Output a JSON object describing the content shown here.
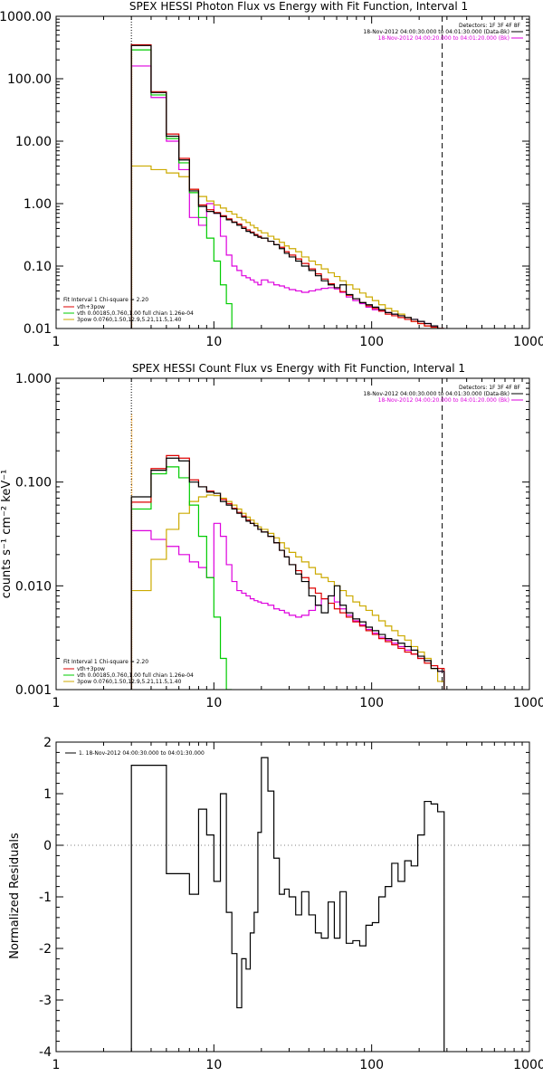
{
  "chart_data": [
    {
      "type": "line",
      "title": "SPEX HESSI Photon Flux vs Energy with Fit Function, Interval 1",
      "xlabel": "",
      "ylabel": "",
      "xscale": "log",
      "yscale": "log",
      "xlim": [
        1,
        1000
      ],
      "ylim": [
        0.01,
        1000
      ],
      "xtick_labels": [
        "1",
        "10",
        "100",
        "1000"
      ],
      "ytick_labels": [
        "0.01",
        "0.10",
        "1.00",
        "10.00",
        "100.00",
        "1000.00"
      ],
      "detectors_text": "Detectors: 1F 3F 4F 8F",
      "time_lines": [
        {
          "text": "18-Nov-2012 04:00:30.000 to 04:01:30.000 (Data-Bk)",
          "color": "#000000"
        },
        {
          "text": "18-Nov-2012 04:00:20.000 to 04:01:20.000 (Bk)",
          "color": "#dd00dd"
        }
      ],
      "fit_legend": [
        {
          "text": "Fit Interval 1    Chi-square = 2.20",
          "color": "#000000"
        },
        {
          "text": "vth+3pow",
          "color": "#dd0000"
        },
        {
          "text": "vth 0.00185,0.760,1.00   full chian 1.26e-04",
          "color": "#00cc00"
        },
        {
          "text": "3pow 0.0760,1.50,12.9,5.21,11.5,1.40",
          "color": "#ccaa00"
        }
      ],
      "vlines": [
        {
          "x": 3,
          "style": "dotted"
        },
        {
          "x": 280,
          "style": "dashed"
        }
      ],
      "edges": [
        3,
        4,
        5,
        6,
        7,
        8,
        9,
        10,
        11,
        12,
        13,
        14,
        15,
        16,
        17,
        18,
        19,
        20,
        22,
        24,
        26,
        28,
        30,
        33,
        36,
        40,
        44,
        48,
        53,
        58,
        63,
        69,
        76,
        84,
        92,
        101,
        111,
        122,
        134,
        147,
        162,
        178,
        196,
        216,
        238,
        262,
        288
      ],
      "series": [
        {
          "name": "Data-Bk",
          "color": "#000000",
          "values": [
            340,
            60,
            12,
            5,
            1.6,
            0.9,
            0.75,
            0.7,
            0.62,
            0.55,
            0.5,
            0.45,
            0.4,
            0.36,
            0.34,
            0.31,
            0.29,
            0.28,
            0.25,
            0.22,
            0.19,
            0.16,
            0.14,
            0.12,
            0.1,
            0.085,
            0.07,
            0.058,
            0.05,
            0.045,
            0.05,
            0.035,
            0.03,
            0.026,
            0.024,
            0.022,
            0.02,
            0.018,
            0.017,
            0.016,
            0.015,
            0.014,
            0.013,
            0.012,
            0.011,
            0.01
          ]
        },
        {
          "name": "vth+3pow",
          "color": "#dd0000",
          "values": [
            350,
            62,
            13,
            5.3,
            1.7,
            0.95,
            0.8,
            0.72,
            0.64,
            0.57,
            0.51,
            0.47,
            0.42,
            0.38,
            0.35,
            0.32,
            0.3,
            0.28,
            0.25,
            0.22,
            0.2,
            0.17,
            0.15,
            0.13,
            0.11,
            0.09,
            0.075,
            0.062,
            0.052,
            0.045,
            0.039,
            0.034,
            0.03,
            0.026,
            0.023,
            0.021,
            0.019,
            0.017,
            0.016,
            0.015,
            0.014,
            0.013,
            0.012,
            0.011,
            0.0105,
            0.01
          ]
        },
        {
          "name": "vth",
          "color": "#00cc00",
          "values": [
            290,
            55,
            11,
            4.5,
            1.5,
            0.6,
            0.28,
            0.12,
            0.05,
            0.025
          ]
        },
        {
          "name": "3pow",
          "color": "#ccaa00",
          "values": [
            4,
            3.5,
            3.1,
            2.7,
            1.7,
            1.3,
            1.1,
            0.95,
            0.85,
            0.75,
            0.68,
            0.6,
            0.55,
            0.5,
            0.45,
            0.41,
            0.37,
            0.34,
            0.3,
            0.27,
            0.24,
            0.21,
            0.19,
            0.17,
            0.14,
            0.12,
            0.105,
            0.09,
            0.078,
            0.068,
            0.058,
            0.05,
            0.043,
            0.037,
            0.032,
            0.028,
            0.024,
            0.021,
            0.019,
            0.017,
            0.015,
            0.013,
            0.012,
            0.011,
            0.0105,
            0.01
          ]
        },
        {
          "name": "Bk",
          "color": "#dd00dd",
          "values": [
            160,
            50,
            10,
            3.5,
            0.6,
            0.45,
            1.0,
            0.7,
            0.3,
            0.15,
            0.1,
            0.085,
            0.07,
            0.065,
            0.06,
            0.055,
            0.05,
            0.06,
            0.055,
            0.05,
            0.048,
            0.045,
            0.042,
            0.04,
            0.038,
            0.04,
            0.042,
            0.044,
            0.045,
            0.043,
            0.038,
            0.032,
            0.028,
            0.025,
            0.022,
            0.02,
            0.019,
            0.018,
            0.017,
            0.016,
            0.015,
            0.014,
            0.013,
            0.012,
            0.011,
            0.01
          ]
        }
      ]
    },
    {
      "type": "line",
      "title": "SPEX HESSI Count Flux vs Energy with Fit Function, Interval 1",
      "xlabel": "",
      "ylabel": "counts s⁻¹ cm⁻² keV⁻¹",
      "xscale": "log",
      "yscale": "log",
      "xlim": [
        1,
        1000
      ],
      "ylim": [
        0.001,
        1
      ],
      "xtick_labels": [
        "1",
        "10",
        "100",
        "1000"
      ],
      "ytick_labels": [
        "0.001",
        "0.010",
        "0.100",
        "1.000"
      ],
      "detectors_text": "Detectors: 1F 3F 4F 8F",
      "time_lines": [
        {
          "text": "18-Nov-2012 04:00:30.000 to 04:01:30.000 (Data-Bk)",
          "color": "#000000"
        },
        {
          "text": "18-Nov-2012 04:00:20.000 to 04:01:20.000 (Bk)",
          "color": "#dd00dd"
        }
      ],
      "fit_legend": [
        {
          "text": "Fit Interval 1    Chi-square = 2.20",
          "color": "#000000"
        },
        {
          "text": "vth+3pow",
          "color": "#dd0000"
        },
        {
          "text": "vth 0.00185,0.760,1.00   full chian 1.26e-04",
          "color": "#00cc00"
        },
        {
          "text": "3pow 0.0760,1.50,12.9,5.21,11.5,1.40",
          "color": "#ccaa00"
        }
      ],
      "vlines": [
        {
          "x": 3,
          "style": "dotted"
        },
        {
          "x": 280,
          "style": "dashed"
        }
      ],
      "edges": [
        3,
        4,
        5,
        6,
        7,
        8,
        9,
        10,
        11,
        12,
        13,
        14,
        15,
        16,
        17,
        18,
        19,
        20,
        22,
        24,
        26,
        28,
        30,
        33,
        36,
        40,
        44,
        48,
        53,
        58,
        63,
        69,
        76,
        84,
        92,
        101,
        111,
        122,
        134,
        147,
        162,
        178,
        196,
        216,
        238,
        262,
        288
      ],
      "series": [
        {
          "name": "Data-Bk",
          "color": "#000000",
          "values": [
            0.072,
            0.13,
            0.17,
            0.16,
            0.1,
            0.09,
            0.08,
            0.078,
            0.065,
            0.06,
            0.055,
            0.05,
            0.046,
            0.042,
            0.04,
            0.038,
            0.035,
            0.033,
            0.03,
            0.026,
            0.022,
            0.019,
            0.016,
            0.013,
            0.011,
            0.008,
            0.0065,
            0.0055,
            0.008,
            0.01,
            0.0065,
            0.0055,
            0.0048,
            0.0045,
            0.004,
            0.0037,
            0.0034,
            0.0031,
            0.003,
            0.0028,
            0.0026,
            0.0024,
            0.0021,
            0.0019,
            0.0016,
            0.0015
          ]
        },
        {
          "name": "vth+3pow",
          "color": "#dd0000",
          "values": [
            0.064,
            0.135,
            0.18,
            0.17,
            0.105,
            0.09,
            0.082,
            0.078,
            0.068,
            0.062,
            0.056,
            0.051,
            0.047,
            0.043,
            0.04,
            0.038,
            0.035,
            0.033,
            0.03,
            0.026,
            0.022,
            0.019,
            0.016,
            0.014,
            0.012,
            0.0095,
            0.0085,
            0.0075,
            0.0068,
            0.006,
            0.0055,
            0.005,
            0.0045,
            0.0041,
            0.0037,
            0.0034,
            0.0031,
            0.0029,
            0.0027,
            0.0025,
            0.0023,
            0.0022,
            0.002,
            0.0018,
            0.0017,
            0.0016
          ]
        },
        {
          "name": "vth",
          "color": "#00cc00",
          "values": [
            0.055,
            0.12,
            0.14,
            0.11,
            0.06,
            0.03,
            0.012,
            0.005,
            0.002,
            0.0008
          ]
        },
        {
          "name": "3pow",
          "color": "#ccaa00",
          "values": [
            0.009,
            0.018,
            0.035,
            0.05,
            0.065,
            0.072,
            0.075,
            0.074,
            0.07,
            0.065,
            0.06,
            0.055,
            0.05,
            0.046,
            0.043,
            0.04,
            0.037,
            0.035,
            0.032,
            0.029,
            0.026,
            0.023,
            0.021,
            0.019,
            0.017,
            0.015,
            0.013,
            0.012,
            0.011,
            0.01,
            0.009,
            0.008,
            0.007,
            0.0064,
            0.0058,
            0.0052,
            0.0046,
            0.0041,
            0.0037,
            0.0033,
            0.003,
            0.0026,
            0.0023,
            0.002,
            0.0016,
            0.0012
          ]
        },
        {
          "name": "Bk",
          "color": "#dd00dd",
          "values": [
            0.034,
            0.028,
            0.024,
            0.02,
            0.017,
            0.015,
            0.012,
            0.04,
            0.03,
            0.016,
            0.011,
            0.009,
            0.0085,
            0.008,
            0.0075,
            0.0072,
            0.007,
            0.0068,
            0.0065,
            0.006,
            0.0058,
            0.0055,
            0.0052,
            0.005,
            0.0052,
            0.0058,
            0.0065,
            0.0075,
            0.008,
            0.007,
            0.006,
            0.0052,
            0.0046,
            0.0042,
            0.0038,
            0.0035,
            0.0032,
            0.003,
            0.0028,
            0.0026,
            0.0024,
            0.0022,
            0.002,
            0.0019,
            0.0017,
            0.0015
          ]
        }
      ]
    },
    {
      "type": "line",
      "title": "",
      "xlabel": "",
      "ylabel": "Normalized Residuals",
      "xscale": "log",
      "yscale": "linear",
      "xlim": [
        1,
        1000
      ],
      "ylim": [
        -4,
        2
      ],
      "xtick_labels": [
        "1",
        "10",
        "100",
        "1000"
      ],
      "ytick_labels": [
        "-4",
        "-3",
        "-2",
        "-1",
        "0",
        "1",
        "2"
      ],
      "legend": [
        {
          "text": "1. 18-Nov-2012 04:00:30.000 to 04:01:30.000",
          "color": "#000000"
        }
      ],
      "edges": [
        3,
        4,
        5,
        6,
        7,
        8,
        9,
        10,
        11,
        12,
        13,
        14,
        15,
        16,
        17,
        18,
        19,
        20,
        22,
        24,
        26,
        28,
        30,
        33,
        36,
        40,
        44,
        48,
        53,
        58,
        63,
        69,
        76,
        84,
        92,
        101,
        111,
        122,
        134,
        147,
        162,
        178,
        196,
        216,
        238,
        262,
        288
      ],
      "series": [
        {
          "name": "1. 18-Nov-2012 04:00:30.000 to 04:01:30.000",
          "color": "#000000",
          "values": [
            1.55,
            1.55,
            -0.55,
            -0.55,
            -0.95,
            0.7,
            0.2,
            -0.7,
            1.0,
            -1.3,
            -2.1,
            -3.15,
            -2.2,
            -2.4,
            -1.7,
            -1.3,
            0.25,
            1.7,
            1.05,
            -0.25,
            -0.95,
            -0.85,
            -1.0,
            -1.35,
            -0.9,
            -1.35,
            -1.7,
            -1.8,
            -1.1,
            -1.8,
            -0.9,
            -1.9,
            -1.85,
            -1.95,
            -1.55,
            -1.5,
            -1.0,
            -0.8,
            -0.35,
            -0.7,
            -0.3,
            -0.4,
            0.2,
            0.85,
            0.8,
            0.65
          ]
        }
      ]
    }
  ]
}
